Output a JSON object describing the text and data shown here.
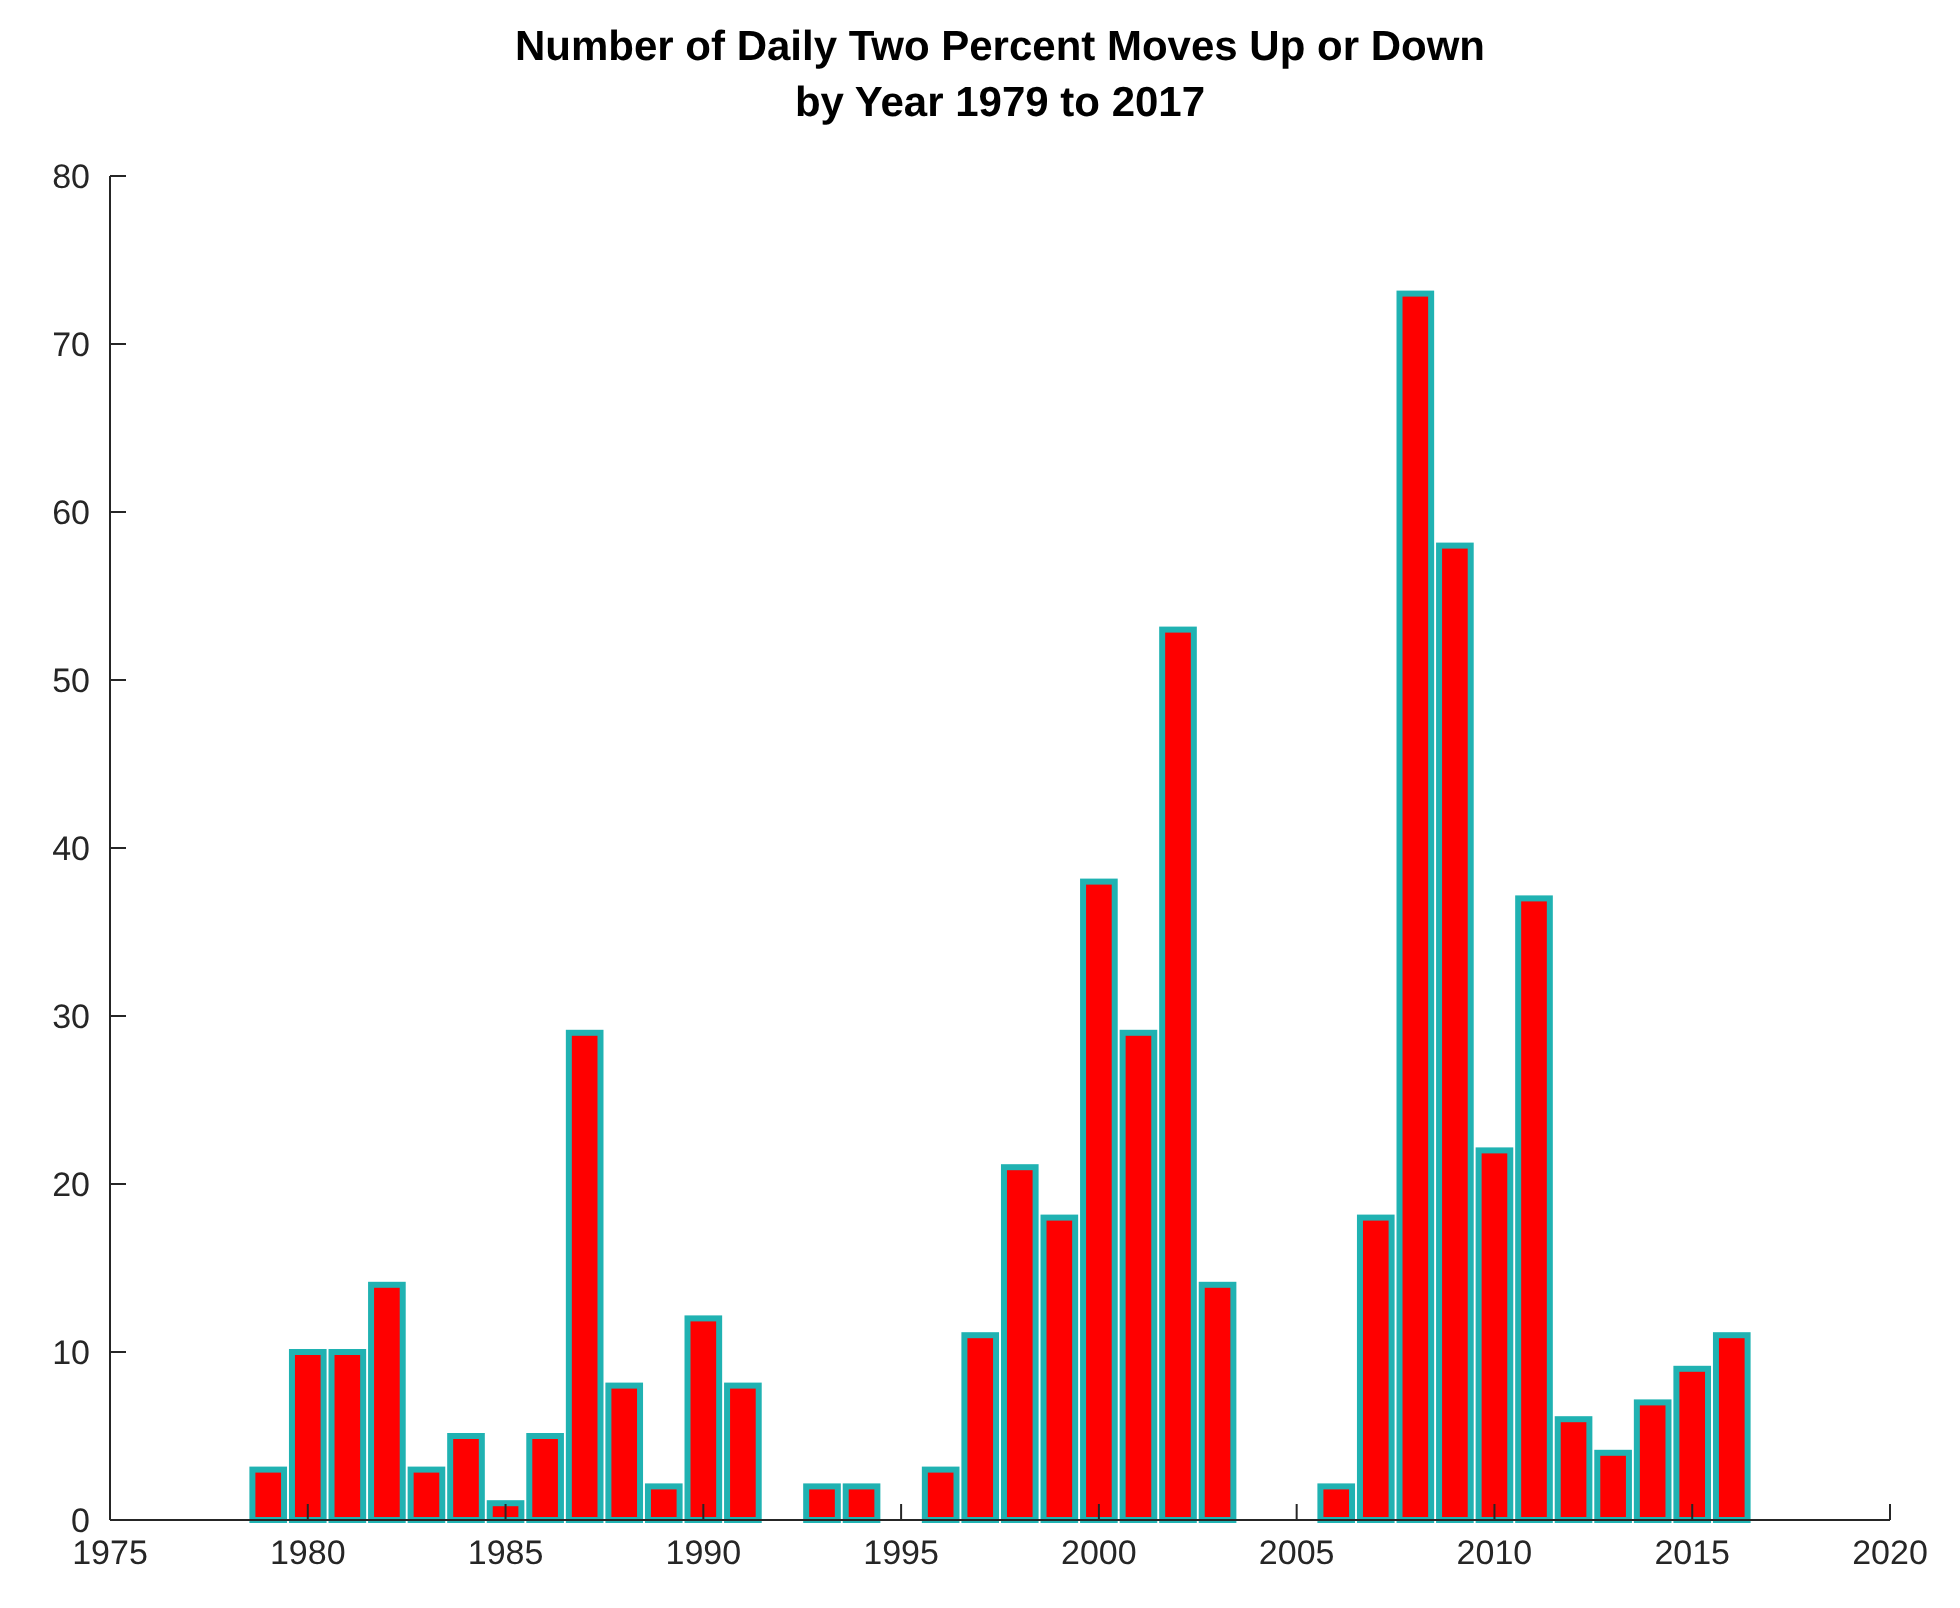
{
  "chart_data": {
    "type": "bar",
    "title": "Number of Daily Two Percent Moves Up or Down\nby Year 1979 to 2017",
    "x": [
      1979,
      1980,
      1981,
      1982,
      1983,
      1984,
      1985,
      1986,
      1987,
      1988,
      1989,
      1990,
      1991,
      1992,
      1993,
      1994,
      1995,
      1996,
      1997,
      1998,
      1999,
      2000,
      2001,
      2002,
      2003,
      2004,
      2005,
      2006,
      2007,
      2008,
      2009,
      2010,
      2011,
      2012,
      2013,
      2014,
      2015,
      2016,
      2017
    ],
    "series": [
      {
        "color": "#ff0000",
        "values": [
          3,
          10,
          10,
          14,
          3,
          5,
          1,
          5,
          29,
          8,
          2,
          12,
          8,
          0,
          2,
          2,
          0,
          3,
          11,
          21,
          18,
          38,
          29,
          53,
          14,
          0,
          0,
          2,
          18,
          73,
          58,
          22,
          37,
          6,
          4,
          7,
          9,
          11,
          0
        ]
      }
    ],
    "xlim": [
      1975,
      2020
    ],
    "xticks": [
      1975,
      1980,
      1985,
      1990,
      1995,
      2000,
      2005,
      2010,
      2015,
      2020
    ],
    "ylim": [
      0,
      80
    ],
    "yticks": [
      0,
      10,
      20,
      30,
      40,
      50,
      60,
      70,
      80
    ],
    "grid": false
  }
}
